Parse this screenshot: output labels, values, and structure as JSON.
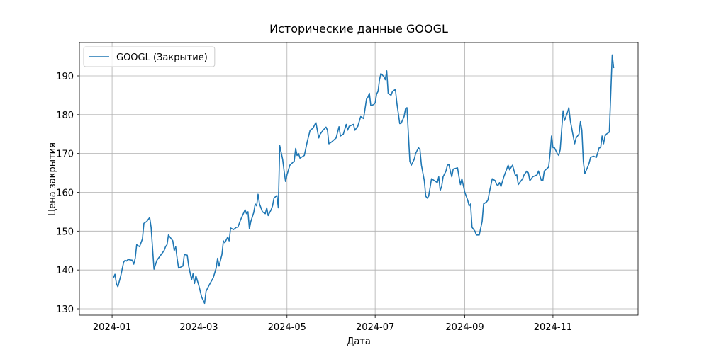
{
  "chart_data": {
    "type": "line",
    "title": "Исторические данные GOOGL",
    "x_label": "Дата",
    "y_label": "Цена закрытия",
    "x": [
      1,
      2,
      3,
      4,
      6,
      8,
      9,
      10,
      11,
      14,
      15,
      16,
      17,
      19,
      21,
      22,
      24,
      26,
      27,
      29,
      31,
      33,
      36,
      37,
      38,
      39,
      41,
      42,
      43,
      44,
      45,
      46,
      49,
      50,
      52,
      53,
      55,
      56,
      57,
      58,
      60,
      62,
      64,
      65,
      67,
      70,
      72,
      73,
      74,
      76,
      77,
      78,
      80,
      81,
      82,
      84,
      86,
      87,
      89,
      92,
      93,
      94,
      95,
      96,
      98,
      99,
      100,
      101,
      102,
      104,
      106,
      107,
      108,
      110,
      111,
      112,
      114,
      115,
      116,
      118,
      119,
      120,
      121,
      123,
      125,
      126,
      127,
      128,
      129,
      130,
      133,
      135,
      137,
      139,
      141,
      142,
      143,
      144,
      146,
      148,
      149,
      150,
      152,
      155,
      157,
      158,
      160,
      162,
      163,
      164,
      167,
      168,
      170,
      172,
      174,
      176,
      177,
      178,
      179,
      181,
      182,
      183,
      184,
      185,
      186,
      188,
      189,
      190,
      191,
      193,
      194,
      196,
      197,
      199,
      200,
      202,
      203,
      204,
      206,
      207,
      209,
      210,
      212,
      213,
      214,
      216,
      217,
      218,
      219,
      221,
      223,
      225,
      226,
      227,
      228,
      229,
      231,
      232,
      233,
      234,
      235,
      236,
      239,
      240,
      241,
      242,
      244,
      246,
      247,
      248,
      249,
      251,
      252,
      254,
      256,
      257,
      259,
      260,
      261,
      263,
      265,
      266,
      267,
      268,
      269,
      271,
      272,
      274,
      275,
      277,
      279,
      280,
      281,
      282,
      284,
      285,
      287,
      288,
      289,
      291,
      294,
      295,
      297,
      298,
      299,
      302,
      303,
      304,
      305,
      306,
      308,
      309,
      310,
      312,
      313,
      314,
      315,
      316,
      317,
      320,
      321,
      323,
      324,
      325,
      326,
      327,
      329,
      330,
      331,
      333,
      335,
      337,
      338,
      339,
      340,
      341,
      342,
      344,
      346,
      347
    ],
    "series": [
      {
        "name": "GOOGL (Закрытие)",
        "color": "#1f77b4",
        "values": [
          138,
          138.9,
          136.5,
          135.7,
          138.5,
          142,
          142.5,
          142.3,
          142.7,
          142.5,
          141.5,
          143,
          146.5,
          146,
          148,
          152,
          152.5,
          153.5,
          151,
          140.2,
          142.5,
          143.5,
          145,
          146,
          146.5,
          149,
          148,
          147.5,
          145,
          146,
          143,
          140.5,
          141,
          144,
          143.8,
          141,
          137.5,
          139,
          136.5,
          138.5,
          136,
          133,
          131.4,
          134.5,
          136,
          138,
          140.5,
          143,
          141,
          144,
          147.5,
          147,
          148.5,
          147.5,
          150.8,
          150.4,
          151,
          151,
          153,
          155.5,
          154.5,
          155,
          150.6,
          152.5,
          154.8,
          157,
          156.5,
          159.5,
          157,
          155,
          154.5,
          156,
          154,
          155.5,
          156.5,
          158.5,
          159.2,
          156,
          172,
          168.5,
          165.5,
          162.8,
          164.5,
          167,
          167.7,
          168,
          171.3,
          169.5,
          170,
          168.8,
          169.5,
          173,
          176,
          176.5,
          178,
          176,
          174,
          175,
          176,
          176.8,
          176,
          172.5,
          173,
          174,
          176.9,
          174.5,
          175,
          177.5,
          176,
          177,
          177.5,
          176,
          177,
          179.5,
          179,
          184,
          184.5,
          185.5,
          182.3,
          182.6,
          183,
          185.3,
          186,
          189,
          190.6,
          189.8,
          189,
          191.3,
          185.5,
          185,
          186,
          186.5,
          183,
          177.7,
          177.8,
          179.5,
          181.5,
          181.8,
          168,
          167,
          168.5,
          170,
          171.5,
          171,
          167,
          163,
          159,
          158.5,
          159,
          163.5,
          163,
          162.5,
          164,
          160.5,
          161.5,
          164,
          165.5,
          167,
          167.2,
          165.5,
          164,
          166,
          166.3,
          164,
          162,
          163.5,
          160,
          158,
          156.5,
          157,
          151,
          150,
          149,
          149,
          152.5,
          157,
          157.5,
          158,
          160,
          163.5,
          163,
          162,
          161.8,
          162.5,
          161.5,
          164,
          165,
          167,
          165.8,
          167,
          164.3,
          164.5,
          162,
          162.5,
          163.5,
          164.5,
          165.5,
          165,
          163,
          164,
          164.5,
          165.5,
          163,
          163,
          165.5,
          166.5,
          170,
          174.5,
          171.5,
          171.5,
          170,
          169.5,
          171,
          181,
          178.5,
          179.5,
          180.5,
          181.8,
          178.5,
          172.5,
          174,
          175,
          178.2,
          176,
          168,
          164.8,
          166.5,
          167.5,
          169,
          169.3,
          169,
          171.5,
          171.5,
          174.5,
          172.5,
          174.5,
          175,
          175.5,
          195.4,
          192
        ]
      }
    ],
    "xlim": [
      -22.6,
      363.9
    ],
    "ylim": [
      128.36,
      198.57
    ],
    "xticks": [
      {
        "value": 0,
        "label": "2024-01"
      },
      {
        "value": 60,
        "label": "2024-03"
      },
      {
        "value": 121,
        "label": "2024-05"
      },
      {
        "value": 182,
        "label": "2024-07"
      },
      {
        "value": 244,
        "label": "2024-09"
      },
      {
        "value": 305,
        "label": "2024-11"
      }
    ],
    "yticks": [
      130,
      140,
      150,
      160,
      170,
      180,
      190
    ],
    "grid": true,
    "legend": "upper-left"
  }
}
